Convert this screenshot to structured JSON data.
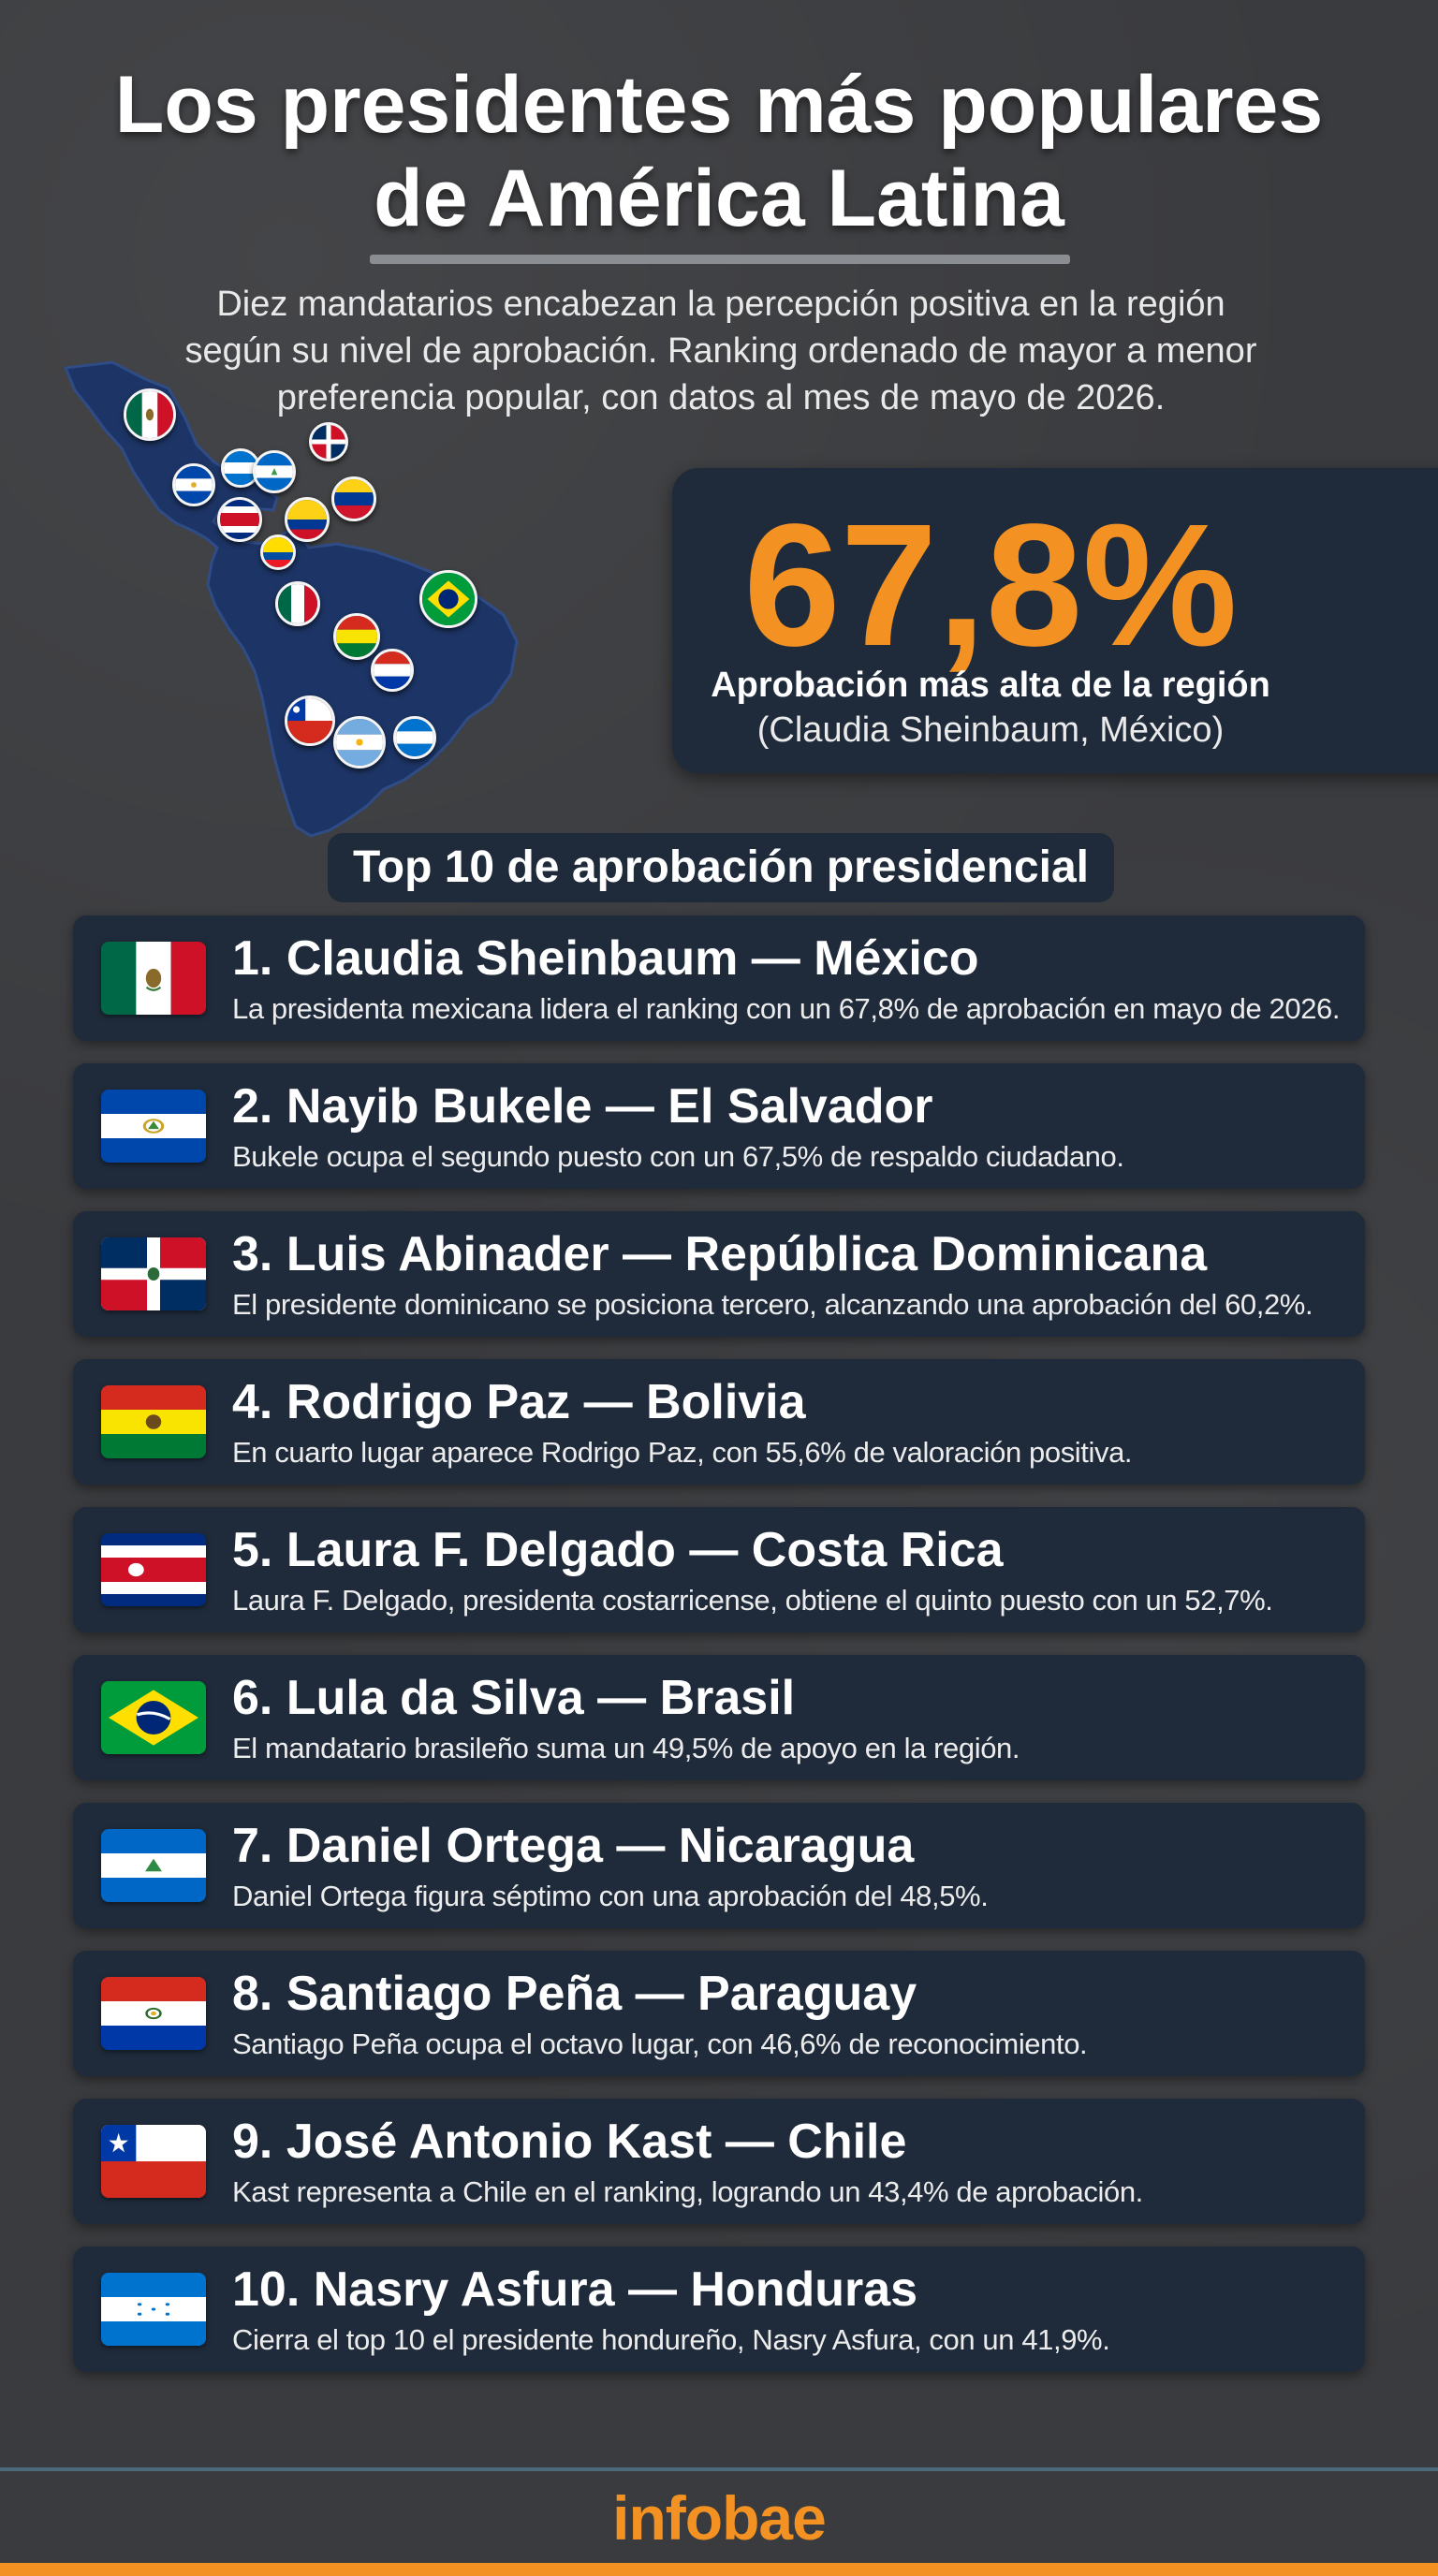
{
  "header": {
    "title_line1": "Los presidentes más populares",
    "title_line2": "de América Latina",
    "subtitle_line1": "Diez mandatarios encabezan la percepción positiva en la región",
    "subtitle_line2": "según su nivel de aprobación. Ranking ordenado de mayor a menor",
    "subtitle_line3": "preferencia popular, con datos al mes de mayo de 2026."
  },
  "highlight": {
    "value": "67,8%",
    "label": "Aprobación más alta de la región",
    "sub": "(Claudia Sheinbaum, México)",
    "value_color": "#f39222"
  },
  "section_title": "Top 10 de aprobación presidencial",
  "ranking": [
    {
      "title": "1. Claudia Sheinbaum — México",
      "desc": "La presidenta mexicana lidera el ranking con un 67,8% de aprobación en mayo de 2026.",
      "flag": "mexico-flag"
    },
    {
      "title": "2. Nayib Bukele — El Salvador",
      "desc": "Bukele ocupa el segundo puesto con un 67,5% de respaldo ciudadano.",
      "flag": "el-salvador-flag"
    },
    {
      "title": "3. Luis Abinader — República Dominicana",
      "desc": "El presidente dominicano se posiciona tercero, alcanzando una aprobación del 60,2%.",
      "flag": "dominican-republic-flag"
    },
    {
      "title": "4. Rodrigo Paz — Bolivia",
      "desc": "En cuarto lugar aparece Rodrigo Paz, con 55,6% de valoración positiva.",
      "flag": "bolivia-flag"
    },
    {
      "title": "5. Laura F. Delgado — Costa Rica",
      "desc": "Laura F. Delgado, presidenta costarricense, obtiene el quinto puesto con un 52,7%.",
      "flag": "costa-rica-flag"
    },
    {
      "title": "6. Lula da Silva — Brasil",
      "desc": "El mandatario brasileño suma un 49,5% de apoyo en la región.",
      "flag": "brazil-flag"
    },
    {
      "title": "7. Daniel Ortega — Nicaragua",
      "desc": "Daniel Ortega figura séptimo con una aprobación del 48,5%.",
      "flag": "nicaragua-flag"
    },
    {
      "title": "8. Santiago Peña — Paraguay",
      "desc": "Santiago Peña ocupa el octavo lugar, con 46,6% de reconocimiento.",
      "flag": "paraguay-flag"
    },
    {
      "title": "9. José Antonio Kast — Chile",
      "desc": "Kast representa a Chile en el ranking, logrando un 43,4% de aprobación.",
      "flag": "chile-flag"
    },
    {
      "title": "10. Nasry Asfura — Honduras",
      "desc": "Cierra el top 10 el presidente hondureño, Nasry Asfura, con un 41,9%.",
      "flag": "honduras-flag"
    }
  ],
  "footer": {
    "brand": "infobae",
    "brand_color": "#f39222"
  }
}
